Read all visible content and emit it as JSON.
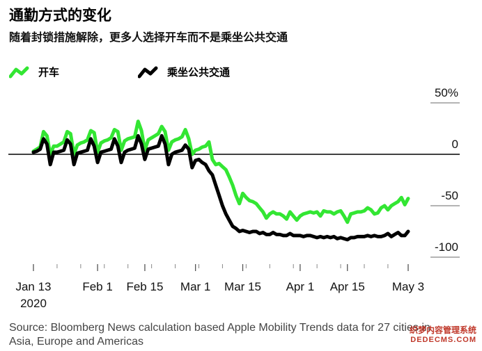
{
  "title": "通勤方式的变化",
  "subtitle": "随着封锁措施解除，更多人选择开车而不是乘坐公共交通",
  "source": "Source: Bloomberg News calculation based Apple Mobility Trends data for 27 cities in Asia, Europe and Americas",
  "watermark": {
    "line1": "织梦内容管理系统",
    "line2": "DEDECMS.COM"
  },
  "colors": {
    "driving": "#33e633",
    "transit": "#000000",
    "baseline": "#000000",
    "axis": "#888888"
  },
  "chart_data": {
    "type": "line",
    "x_label_lines": [
      [
        "Jan 13",
        "2020"
      ],
      [
        "Feb 1"
      ],
      [
        "Feb 15"
      ],
      [
        "Mar 1"
      ],
      [
        "Mar 15"
      ],
      [
        "Apr 1"
      ],
      [
        "Apr 15"
      ],
      [
        "May 3"
      ]
    ],
    "x_tick_days": [
      0,
      19,
      33,
      48,
      62,
      79,
      93,
      111
    ],
    "y_ticks": [
      50,
      0,
      -50,
      -100
    ],
    "y_tick_labels": [
      "50%",
      "0",
      "-50",
      "-100"
    ],
    "ylim": [
      -100,
      50
    ],
    "xlim": [
      0,
      111
    ],
    "baseline": 0,
    "legend_position": "top-left",
    "series": [
      {
        "name": "开车",
        "key": "driving",
        "x": [
          0,
          1,
          2,
          3,
          4,
          5,
          6,
          7,
          8,
          9,
          10,
          11,
          12,
          13,
          14,
          15,
          16,
          17,
          18,
          19,
          20,
          21,
          22,
          23,
          24,
          25,
          26,
          27,
          28,
          29,
          30,
          31,
          32,
          33,
          34,
          35,
          36,
          37,
          38,
          39,
          40,
          41,
          42,
          43,
          44,
          45,
          46,
          47,
          48,
          49,
          50,
          51,
          52,
          53,
          54,
          55,
          56,
          57,
          58,
          59,
          60,
          61,
          62,
          63,
          64,
          65,
          66,
          67,
          68,
          69,
          70,
          71,
          72,
          73,
          74,
          75,
          76,
          77,
          78,
          79,
          80,
          81,
          82,
          83,
          84,
          85,
          86,
          87,
          88,
          89,
          90,
          91,
          92,
          93,
          94,
          95,
          96,
          97,
          98,
          99,
          100,
          101,
          102,
          103,
          104,
          105,
          106,
          107,
          108,
          109,
          110,
          111
        ],
        "values": [
          3,
          5,
          7,
          22,
          18,
          0,
          8,
          8,
          10,
          12,
          22,
          20,
          0,
          9,
          11,
          12,
          14,
          23,
          21,
          2,
          11,
          13,
          14,
          16,
          24,
          22,
          4,
          13,
          15,
          16,
          17,
          32,
          23,
          4,
          14,
          16,
          18,
          20,
          27,
          22,
          4,
          12,
          14,
          15,
          17,
          24,
          15,
          0,
          4,
          5,
          7,
          8,
          12,
          -5,
          -10,
          -9,
          -12,
          -15,
          -22,
          -30,
          -40,
          -48,
          -38,
          -42,
          -45,
          -46,
          -48,
          -52,
          -56,
          -62,
          -58,
          -56,
          -58,
          -58,
          -60,
          -63,
          -56,
          -60,
          -64,
          -60,
          -58,
          -57,
          -56,
          -57,
          -56,
          -60,
          -55,
          -56,
          -56,
          -58,
          -56,
          -55,
          -60,
          -66,
          -58,
          -57,
          -56,
          -56,
          -55,
          -52,
          -54,
          -58,
          -57,
          -52,
          -50,
          -54,
          -50,
          -48,
          -46,
          -42,
          -49,
          -43
        ]
      },
      {
        "name": "乘坐公共交通",
        "key": "transit",
        "x": [
          0,
          1,
          2,
          3,
          4,
          5,
          6,
          7,
          8,
          9,
          10,
          11,
          12,
          13,
          14,
          15,
          16,
          17,
          18,
          19,
          20,
          21,
          22,
          23,
          24,
          25,
          26,
          27,
          28,
          29,
          30,
          31,
          32,
          33,
          34,
          35,
          36,
          37,
          38,
          39,
          40,
          41,
          42,
          43,
          44,
          45,
          46,
          47,
          48,
          49,
          50,
          51,
          52,
          53,
          54,
          55,
          56,
          57,
          58,
          59,
          60,
          61,
          62,
          63,
          64,
          65,
          66,
          67,
          68,
          69,
          70,
          71,
          72,
          73,
          74,
          75,
          76,
          77,
          78,
          79,
          80,
          81,
          82,
          83,
          84,
          85,
          86,
          87,
          88,
          89,
          90,
          91,
          92,
          93,
          94,
          95,
          96,
          97,
          98,
          99,
          100,
          101,
          102,
          103,
          104,
          105,
          106,
          107,
          108,
          109,
          110,
          111
        ],
        "values": [
          2,
          3,
          5,
          15,
          10,
          -10,
          2,
          2,
          3,
          4,
          14,
          10,
          -10,
          1,
          2,
          3,
          4,
          15,
          8,
          -8,
          2,
          3,
          4,
          5,
          15,
          8,
          -8,
          2,
          4,
          5,
          6,
          18,
          10,
          -5,
          5,
          6,
          7,
          8,
          18,
          10,
          -10,
          0,
          2,
          3,
          4,
          9,
          5,
          -13,
          -6,
          -5,
          -8,
          -10,
          -16,
          -20,
          -30,
          -40,
          -50,
          -58,
          -64,
          -70,
          -72,
          -75,
          -74,
          -75,
          -76,
          -75,
          -75,
          -77,
          -76,
          -78,
          -78,
          -76,
          -78,
          -78,
          -79,
          -79,
          -77,
          -79,
          -79,
          -79,
          -80,
          -79,
          -79,
          -80,
          -81,
          -80,
          -81,
          -80,
          -81,
          -80,
          -82,
          -81,
          -82,
          -83,
          -81,
          -81,
          -80,
          -80,
          -80,
          -79,
          -80,
          -79,
          -80,
          -80,
          -79,
          -77,
          -80,
          -78,
          -76,
          -79,
          -79,
          -75
        ]
      }
    ]
  }
}
